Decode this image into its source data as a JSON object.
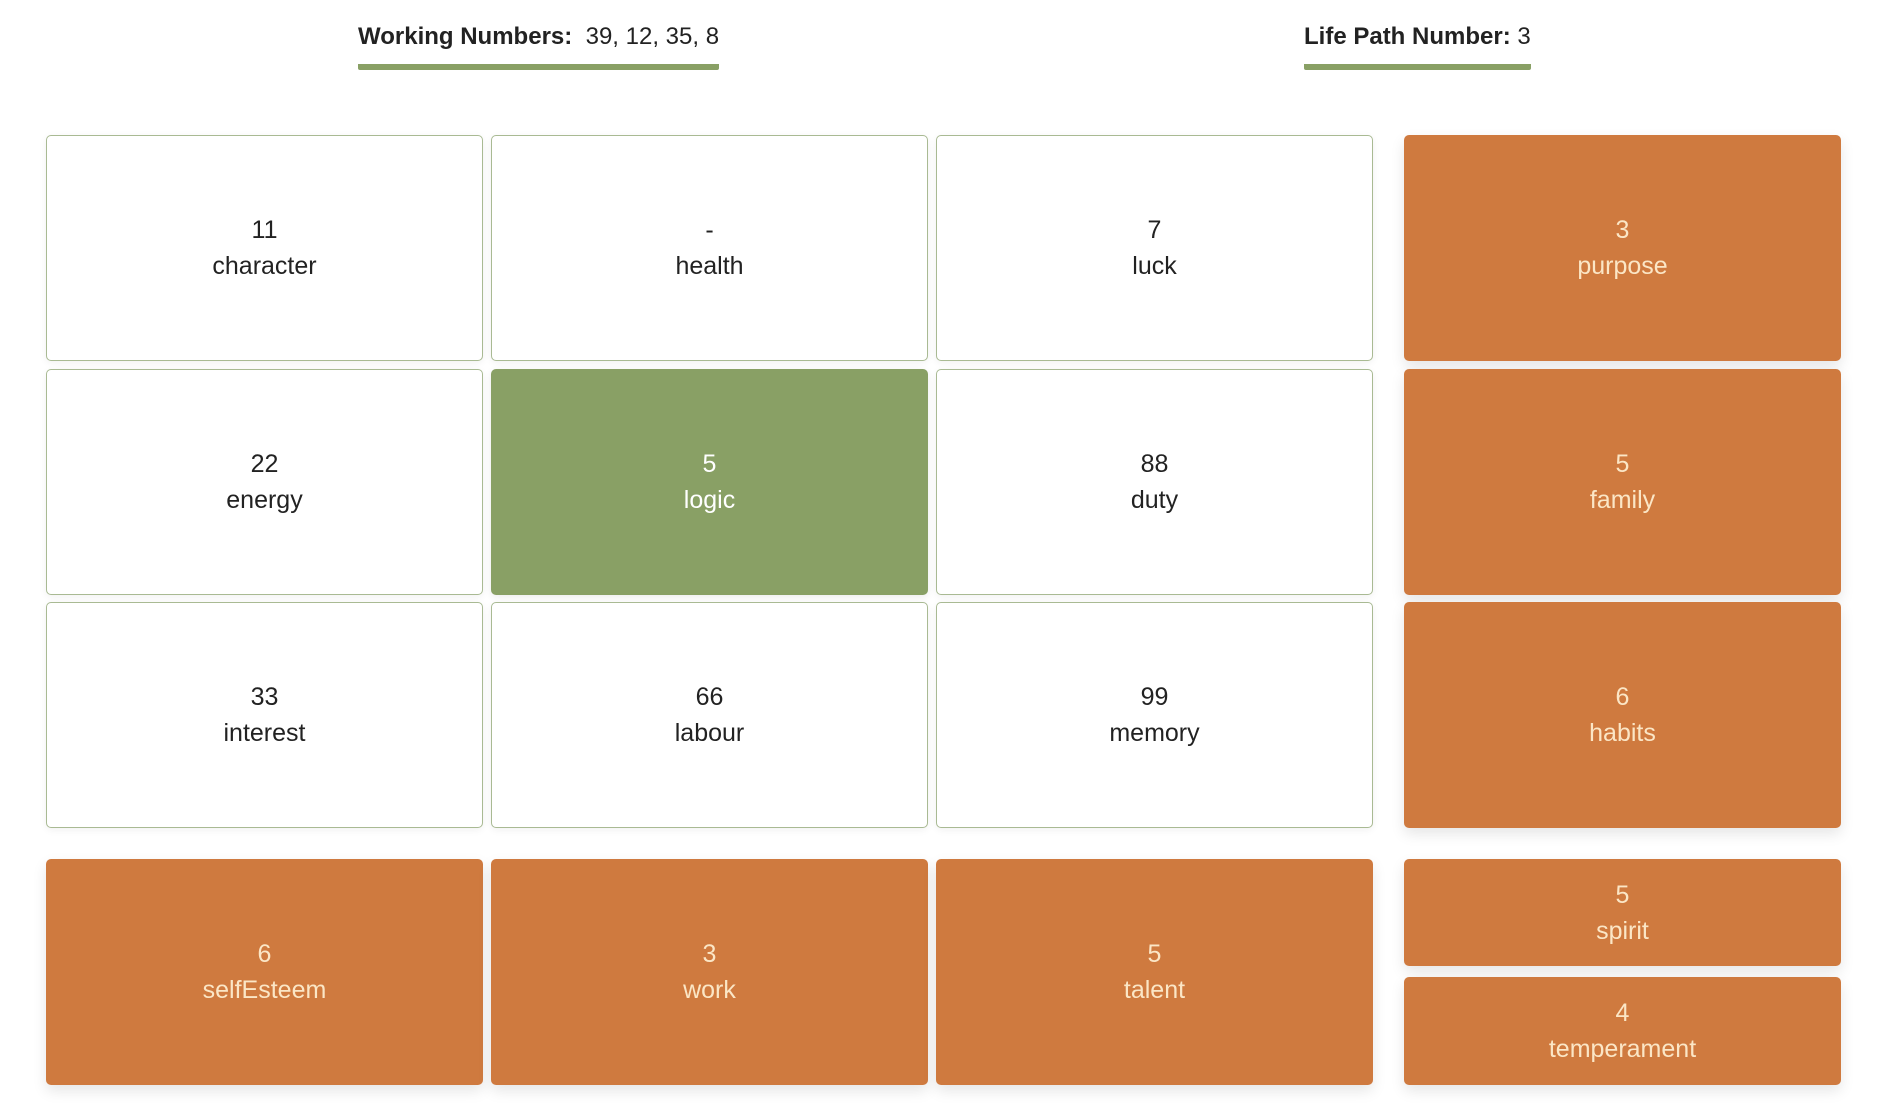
{
  "header": {
    "working_numbers_label": "Working Numbers:",
    "working_numbers_value": "39, 12, 35, 8",
    "life_path_label": "Life Path Number:",
    "life_path_value": "3"
  },
  "grid": {
    "character": {
      "value": "11",
      "label": "character"
    },
    "health": {
      "value": "-",
      "label": "health"
    },
    "luck": {
      "value": "7",
      "label": "luck"
    },
    "energy": {
      "value": "22",
      "label": "energy"
    },
    "logic": {
      "value": "5",
      "label": "logic"
    },
    "duty": {
      "value": "88",
      "label": "duty"
    },
    "interest": {
      "value": "33",
      "label": "interest"
    },
    "labour": {
      "value": "66",
      "label": "labour"
    },
    "memory": {
      "value": "99",
      "label": "memory"
    }
  },
  "side": {
    "purpose": {
      "value": "3",
      "label": "purpose"
    },
    "family": {
      "value": "5",
      "label": "family"
    },
    "habits": {
      "value": "6",
      "label": "habits"
    }
  },
  "bottom": {
    "selfEsteem": {
      "value": "6",
      "label": "selfEsteem"
    },
    "work": {
      "value": "3",
      "label": "work"
    },
    "talent": {
      "value": "5",
      "label": "talent"
    },
    "spirit": {
      "value": "5",
      "label": "spirit"
    },
    "temperament": {
      "value": "4",
      "label": "temperament"
    }
  },
  "colors": {
    "accent_green": "#89a065",
    "accent_orange": "#cf7a3f",
    "orange_text": "#fbe6c6"
  }
}
